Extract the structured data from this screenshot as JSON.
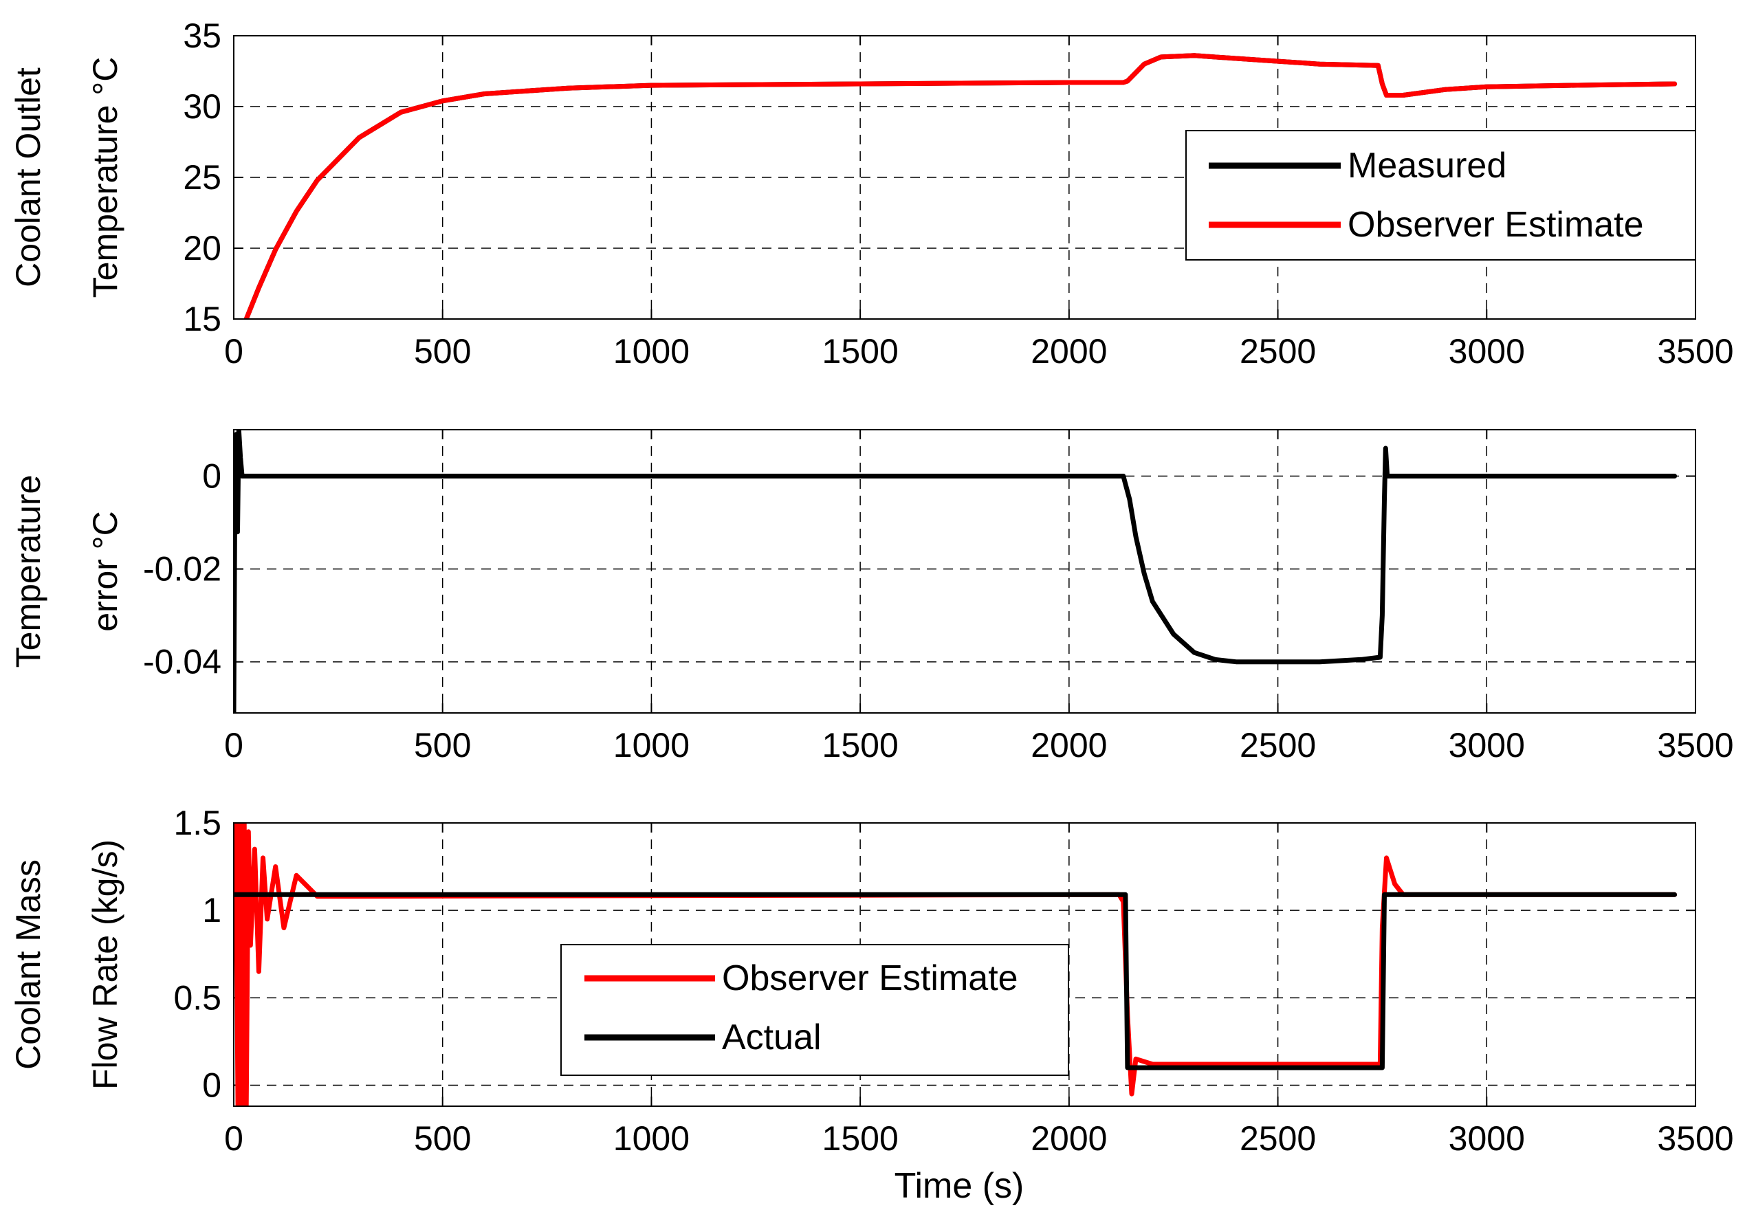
{
  "chart_data": [
    {
      "type": "line",
      "ylabel_lines": [
        "Coolant Outlet",
        "Temperature °C"
      ],
      "xlim": [
        0,
        3500
      ],
      "ylim": [
        15,
        35
      ],
      "xticks": [
        0,
        500,
        1000,
        1500,
        2000,
        2500,
        3000,
        3500
      ],
      "yticks": [
        15,
        20,
        25,
        30,
        35
      ],
      "xtick_labels": [
        "0",
        "500",
        "1000",
        "1500",
        "2000",
        "2500",
        "3000",
        "3500"
      ],
      "ytick_labels": [
        "15",
        "20",
        "25",
        "30",
        "35"
      ],
      "grid": true,
      "legend_position": "right",
      "series": [
        {
          "name": "Measured",
          "color": "#000000",
          "x": [
            30,
            60,
            100,
            150,
            200,
            300,
            400,
            500,
            600,
            800,
            1000,
            1500,
            2000,
            2130,
            2140,
            2180,
            2220,
            2300,
            2400,
            2500,
            2600,
            2740,
            2750,
            2760,
            2800,
            2900,
            3000,
            3200,
            3450
          ],
          "y": [
            15.0,
            17.2,
            19.9,
            22.6,
            24.8,
            27.8,
            29.6,
            30.4,
            30.9,
            31.3,
            31.5,
            31.6,
            31.7,
            31.7,
            31.8,
            33.0,
            33.5,
            33.6,
            33.4,
            33.2,
            33.0,
            32.9,
            31.6,
            30.8,
            30.8,
            31.2,
            31.4,
            31.5,
            31.6
          ]
        },
        {
          "name": "Observer Estimate",
          "color": "#ff0000",
          "x": [
            30,
            60,
            100,
            150,
            200,
            300,
            400,
            500,
            600,
            800,
            1000,
            1500,
            2000,
            2130,
            2140,
            2180,
            2220,
            2300,
            2400,
            2500,
            2600,
            2740,
            2750,
            2760,
            2800,
            2900,
            3000,
            3200,
            3450
          ],
          "y": [
            15.0,
            17.2,
            19.9,
            22.6,
            24.8,
            27.8,
            29.6,
            30.4,
            30.9,
            31.3,
            31.5,
            31.6,
            31.7,
            31.7,
            31.8,
            33.0,
            33.5,
            33.6,
            33.4,
            33.2,
            33.0,
            32.9,
            31.6,
            30.8,
            30.8,
            31.2,
            31.4,
            31.5,
            31.6
          ]
        }
      ]
    },
    {
      "type": "line",
      "ylabel_lines": [
        "Temperature",
        "error °C"
      ],
      "xlim": [
        0,
        3500
      ],
      "ylim": [
        -0.051,
        0.01
      ],
      "xticks": [
        0,
        500,
        1000,
        1500,
        2000,
        2500,
        3000,
        3500
      ],
      "yticks": [
        -0.04,
        -0.02,
        0
      ],
      "xtick_labels": [
        "0",
        "500",
        "1000",
        "1500",
        "2000",
        "2500",
        "3000",
        "3500"
      ],
      "ytick_labels": [
        "-0.04",
        "-0.02",
        "0"
      ],
      "grid": true,
      "series": [
        {
          "name": "",
          "color": "#000000",
          "x": [
            0,
            3,
            6,
            9,
            12,
            16,
            20,
            25,
            30,
            2130,
            2145,
            2160,
            2180,
            2200,
            2250,
            2300,
            2350,
            2400,
            2500,
            2600,
            2700,
            2745,
            2750,
            2755,
            2758,
            2762,
            2770,
            2800,
            3000,
            3450
          ],
          "y": [
            -0.051,
            0.0,
            0.009,
            -0.012,
            0.01,
            0.004,
            0.0,
            0.0,
            0.0,
            0.0,
            -0.005,
            -0.013,
            -0.021,
            -0.027,
            -0.034,
            -0.038,
            -0.0395,
            -0.04,
            -0.04,
            -0.04,
            -0.0395,
            -0.039,
            -0.03,
            -0.005,
            0.006,
            0.0,
            0.0,
            0.0,
            0.0,
            0.0
          ]
        }
      ]
    },
    {
      "type": "line",
      "ylabel_lines": [
        "Coolant Mass",
        "Flow Rate (kg/s)"
      ],
      "xlabel": "Time (s)",
      "xlim": [
        0,
        3500
      ],
      "ylim": [
        -0.12,
        1.5
      ],
      "xticks": [
        0,
        500,
        1000,
        1500,
        2000,
        2500,
        3000,
        3500
      ],
      "yticks": [
        0,
        0.5,
        1,
        1.5
      ],
      "xtick_labels": [
        "0",
        "500",
        "1000",
        "1500",
        "2000",
        "2500",
        "3000",
        "3500"
      ],
      "ytick_labels": [
        "0",
        "0.5",
        "1",
        "1.5"
      ],
      "grid": true,
      "legend_position": "bottom-center",
      "series": [
        {
          "name": "Observer Estimate",
          "color": "#ff0000",
          "x": [
            0,
            5,
            10,
            15,
            20,
            25,
            30,
            35,
            40,
            50,
            60,
            70,
            80,
            100,
            120,
            150,
            200,
            2120,
            2130,
            2140,
            2150,
            2160,
            2200,
            2700,
            2745,
            2750,
            2760,
            2780,
            2800,
            3450
          ],
          "y": [
            1.2,
            1.5,
            -0.12,
            1.5,
            -0.12,
            1.5,
            -0.12,
            1.45,
            0.8,
            1.35,
            0.65,
            1.3,
            0.95,
            1.25,
            0.9,
            1.2,
            1.08,
            1.09,
            1.05,
            0.4,
            -0.05,
            0.15,
            0.12,
            0.12,
            0.12,
            0.9,
            1.3,
            1.15,
            1.09,
            1.09
          ]
        },
        {
          "name": "Actual",
          "color": "#000000",
          "x": [
            0,
            2135,
            2140,
            2750,
            2755,
            3450
          ],
          "y": [
            1.09,
            1.09,
            0.1,
            0.1,
            1.09,
            1.09
          ]
        }
      ]
    }
  ]
}
